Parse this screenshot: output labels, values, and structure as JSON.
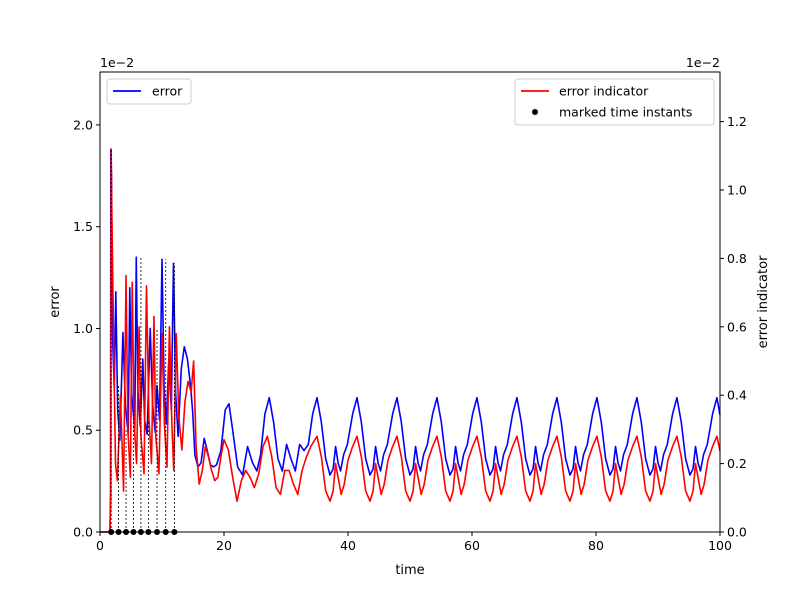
{
  "chart_data": {
    "type": "line",
    "xlabel": "time",
    "ylabel_left": "error",
    "ylabel_right": "error indicator",
    "xlim": [
      0,
      100
    ],
    "ylim_left": [
      0,
      0.0226
    ],
    "ylim_right": [
      0,
      0.01345
    ],
    "left_scale_label": "1e−2",
    "right_scale_label": "1e−2",
    "x_ticks": [
      {
        "value": 0,
        "label": "0"
      },
      {
        "value": 20,
        "label": "20"
      },
      {
        "value": 40,
        "label": "40"
      },
      {
        "value": 60,
        "label": "60"
      },
      {
        "value": 80,
        "label": "80"
      },
      {
        "value": 100,
        "label": "100"
      }
    ],
    "left_ticks": [
      {
        "value": 0.0,
        "label": "0.0"
      },
      {
        "value": 0.005,
        "label": "0.5"
      },
      {
        "value": 0.01,
        "label": "1.0"
      },
      {
        "value": 0.015,
        "label": "1.5"
      },
      {
        "value": 0.02,
        "label": "2.0"
      }
    ],
    "right_ticks": [
      {
        "value": 0.0,
        "label": "0.0"
      },
      {
        "value": 0.002,
        "label": "0.2"
      },
      {
        "value": 0.004,
        "label": "0.4"
      },
      {
        "value": 0.006,
        "label": "0.6"
      },
      {
        "value": 0.008,
        "label": "0.8"
      },
      {
        "value": 0.01,
        "label": "1.0"
      },
      {
        "value": 0.012,
        "label": "1.2"
      }
    ],
    "series": [
      {
        "name": "error",
        "axis": "left",
        "color": "#0000ff",
        "x": [
          0,
          1.6,
          1.7,
          1.75,
          1.85,
          2.0,
          2.3,
          2.55,
          2.7,
          2.85,
          3.2,
          3.7,
          4.1,
          4.55,
          4.8,
          5.1,
          5.6,
          5.85,
          6.1,
          6.5,
          6.9,
          7.2,
          7.6,
          8.1,
          8.5,
          8.9,
          9.2,
          9.6,
          10.0,
          10.35,
          10.7,
          11.1,
          11.5,
          11.85,
          12.2,
          12.6,
          13.1,
          13.6,
          14.1,
          14.6,
          14.95,
          15.3,
          15.8,
          16.3,
          16.8,
          17.3,
          17.8,
          18.3,
          18.8,
          19.5,
          20.2,
          20.8,
          21.4,
          22.2,
          23.0,
          23.8,
          24.6,
          25.3,
          25.9,
          26.6,
          27.3,
          28.0,
          28.7,
          29.4,
          30.1,
          30.8,
          31.5,
          32.2,
          32.9,
          33.6,
          34.3
        ],
        "y": [
          0,
          0,
          0.0018,
          0.0188,
          0.0175,
          0.0098,
          0.0071,
          0.0118,
          0.0089,
          0.006,
          0.0045,
          0.0098,
          0.0062,
          0.0048,
          0.012,
          0.0068,
          0.005,
          0.0135,
          0.007,
          0.0052,
          0.0085,
          0.0055,
          0.0048,
          0.01,
          0.0062,
          0.0049,
          0.0072,
          0.0055,
          0.0134,
          0.007,
          0.0053,
          0.0085,
          0.006,
          0.0132,
          0.0068,
          0.0047,
          0.008,
          0.0091,
          0.0085,
          0.0072,
          0.0059,
          0.0038,
          0.0032,
          0.0034,
          0.0046,
          0.004,
          0.0033,
          0.0032,
          0.0033,
          0.004,
          0.006,
          0.0063,
          0.005,
          0.0032,
          0.0028,
          0.0042,
          0.0034,
          0.003,
          0.0038,
          0.0058,
          0.0066,
          0.0054,
          0.0036,
          0.003,
          0.0043,
          0.0036,
          0.003,
          0.0043,
          0.004,
          0.0043,
          0.0058
        ]
      },
      {
        "name": "error indicator",
        "axis": "right",
        "color": "#ff0000",
        "x": [
          0,
          1.6,
          1.75,
          1.8,
          1.9,
          2.2,
          2.5,
          2.8,
          3.3,
          3.8,
          4.2,
          4.5,
          4.9,
          5.2,
          5.5,
          5.9,
          6.3,
          6.6,
          7.1,
          7.5,
          7.9,
          8.3,
          8.7,
          9.0,
          9.5,
          10.0,
          10.4,
          10.8,
          11.2,
          11.6,
          11.9,
          12.3,
          12.7,
          13.2,
          13.7,
          14.2,
          14.7,
          15.1,
          15.5,
          16.0,
          16.5,
          17.0,
          17.5,
          18.0,
          18.5,
          19.0,
          19.5,
          20.0,
          20.7,
          21.4,
          22.1,
          22.8,
          23.5,
          24.2,
          24.9,
          25.6,
          26.3,
          27.0,
          27.7,
          28.4,
          29.1,
          29.8,
          30.5,
          31.2,
          31.9,
          32.6,
          33.3,
          34.0
        ],
        "y": [
          0,
          0,
          0.0011,
          0.0112,
          0.0095,
          0.0055,
          0.002,
          0.0015,
          0.004,
          0.0012,
          0.0075,
          0.003,
          0.0016,
          0.0073,
          0.0032,
          0.002,
          0.006,
          0.0028,
          0.0017,
          0.0072,
          0.0033,
          0.002,
          0.0063,
          0.0028,
          0.0017,
          0.0058,
          0.0031,
          0.0019,
          0.006,
          0.0031,
          0.0018,
          0.0058,
          0.0034,
          0.0024,
          0.0038,
          0.0044,
          0.0041,
          0.005,
          0.0025,
          0.0014,
          0.0018,
          0.0025,
          0.0022,
          0.0018,
          0.0015,
          0.0016,
          0.0022,
          0.0027,
          0.0024,
          0.0016,
          0.0009,
          0.0015,
          0.0018,
          0.0016,
          0.0013,
          0.0017,
          0.0025,
          0.0028,
          0.0022,
          0.0013,
          0.0011,
          0.0018,
          0.0018,
          0.0014,
          0.0011,
          0.0018,
          0.0022,
          0.0025
        ]
      }
    ],
    "periodic_segment": {
      "start": 34.3,
      "period": 6.45,
      "end": 100,
      "error_shape": {
        "t": [
          0,
          0.7,
          1.4,
          2.1,
          2.8,
          3.3,
          3.7,
          4.1,
          4.5,
          5.0,
          5.6,
          6.45
        ],
        "y": [
          0.0058,
          0.0066,
          0.0054,
          0.0036,
          0.0028,
          0.0031,
          0.0042,
          0.0034,
          0.003,
          0.0038,
          0.0043,
          0.0058
        ]
      },
      "indicator_shape": {
        "t": [
          0,
          0.7,
          1.4,
          2.1,
          2.8,
          3.3,
          3.7,
          4.1,
          4.6,
          5.1,
          5.7,
          6.45
        ],
        "y": [
          0.0025,
          0.0028,
          0.0022,
          0.0012,
          0.0009,
          0.0012,
          0.002,
          0.0016,
          0.0011,
          0.0014,
          0.0021,
          0.0025
        ]
      }
    },
    "marked_time_instants": {
      "name": "marked time instants",
      "color": "#000000",
      "x": [
        1.8,
        3.0,
        4.2,
        5.4,
        6.6,
        7.8,
        9.2,
        10.6,
        12.0
      ],
      "y": [
        0,
        0,
        0,
        0,
        0,
        0,
        0,
        0,
        0
      ],
      "dashed_to_left_y": [
        0.0188,
        0.0072,
        0.005,
        0.006,
        0.0135,
        0.0055,
        0.01,
        0.0134,
        0.0132
      ]
    },
    "legend_left": {
      "placement": "top-left",
      "entries": [
        "error"
      ]
    },
    "legend_right": {
      "placement": "top-right",
      "entries": [
        "error indicator",
        "marked time instants"
      ]
    },
    "grid": false
  }
}
